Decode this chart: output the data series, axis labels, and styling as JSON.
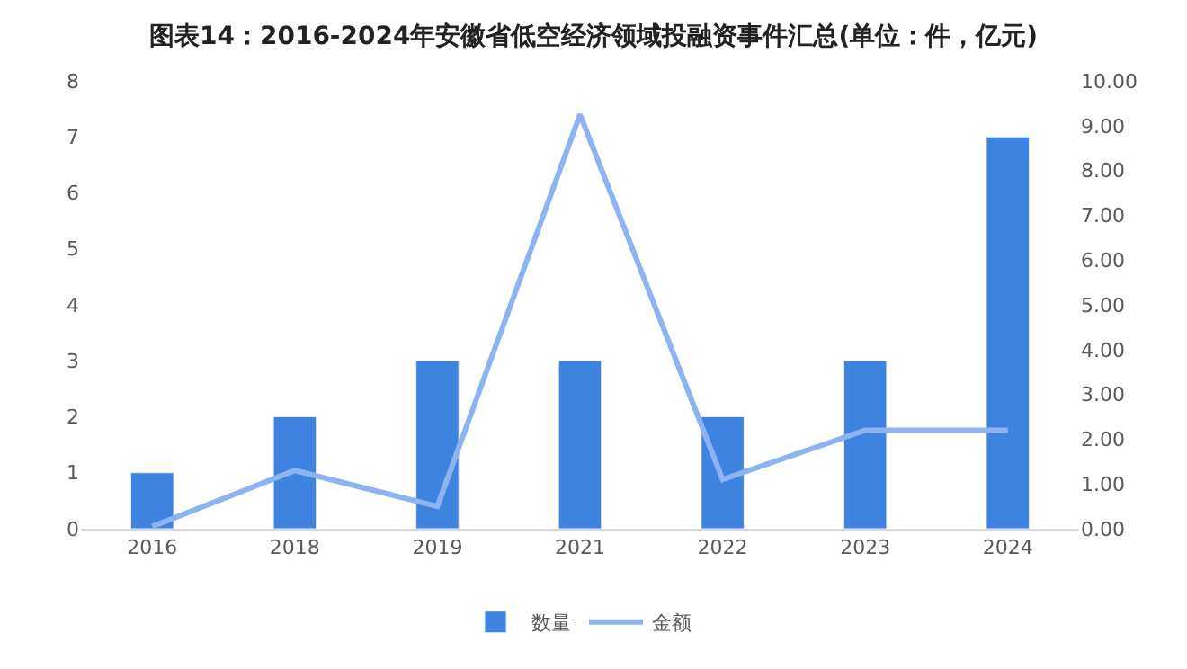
{
  "chart_data": {
    "type": "bar",
    "title": "图表14：2016-2024年安徽省低空经济领域投融资事件汇总(单位：件，亿元)",
    "categories": [
      "2016",
      "2018",
      "2019",
      "2021",
      "2022",
      "2023",
      "2024"
    ],
    "series": [
      {
        "name": "数量",
        "color": "#3f83e0",
        "values": [
          1,
          2,
          3,
          3,
          2,
          3,
          7
        ]
      },
      {
        "name": "金额",
        "type": "line",
        "axis": "y2",
        "color": "#8db4f0",
        "values": [
          0.05,
          1.3,
          0.5,
          9.25,
          1.1,
          2.2,
          2.2
        ]
      }
    ],
    "ylim": [
      0,
      8
    ],
    "yticks": [
      0,
      1,
      2,
      3,
      4,
      5,
      6,
      7,
      8
    ],
    "y2lim": [
      0,
      10
    ],
    "y2ticks": [
      {
        "value": 0,
        "label": "0.00"
      },
      {
        "value": 1,
        "label": "1.00"
      },
      {
        "value": 2,
        "label": "2.00"
      },
      {
        "value": 3,
        "label": "3.00"
      },
      {
        "value": 4,
        "label": "4.00"
      },
      {
        "value": 5,
        "label": "5.00"
      },
      {
        "value": 6,
        "label": "6.00"
      },
      {
        "value": 7,
        "label": "7.00"
      },
      {
        "value": 8,
        "label": "8.00"
      },
      {
        "value": 9,
        "label": "9.00"
      },
      {
        "value": 10,
        "label": "10.00"
      }
    ],
    "legend": "bottom",
    "marker": "none"
  }
}
